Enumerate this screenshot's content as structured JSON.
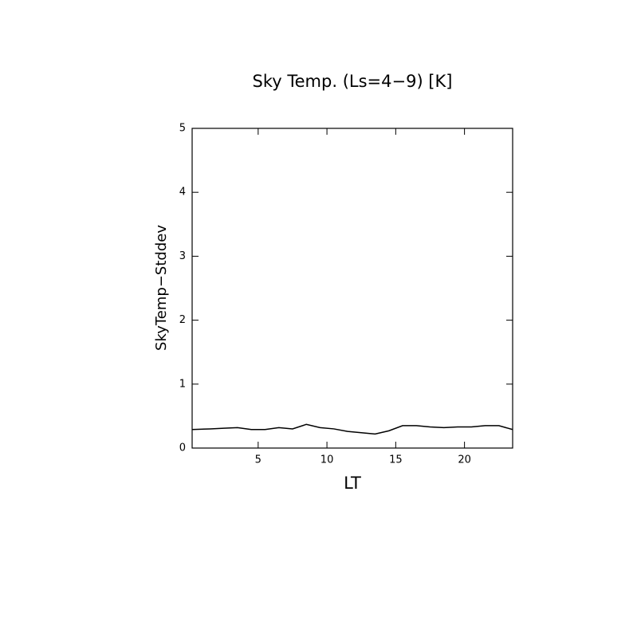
{
  "chart_data": {
    "type": "line",
    "title": "Sky Temp. (Ls=4−9) [K]",
    "x_label": "LT",
    "y_label": "SkyTemp−Stddev",
    "x": [
      0.2,
      1.5,
      2.5,
      3.5,
      4.5,
      5.5,
      6.5,
      7.5,
      8.5,
      9.5,
      10.5,
      11.5,
      12.5,
      13.5,
      14.5,
      15.5,
      16.5,
      17.5,
      18.5,
      19.5,
      20.5,
      21.5,
      22.5,
      23.5
    ],
    "series": [
      {
        "name": "SkyTemp-Stddev",
        "color": "#000000",
        "values": [
          0.29,
          0.3,
          0.31,
          0.32,
          0.29,
          0.29,
          0.32,
          0.3,
          0.37,
          0.32,
          0.3,
          0.26,
          0.24,
          0.22,
          0.27,
          0.35,
          0.35,
          0.33,
          0.32,
          0.33,
          0.33,
          0.35,
          0.35,
          0.29
        ]
      }
    ],
    "xlim": [
      0.2,
      23.5
    ],
    "xticks": [
      5,
      10,
      15,
      20
    ],
    "ylim": [
      0,
      5
    ],
    "yticks": [
      0,
      1,
      2,
      3,
      4,
      5
    ]
  }
}
